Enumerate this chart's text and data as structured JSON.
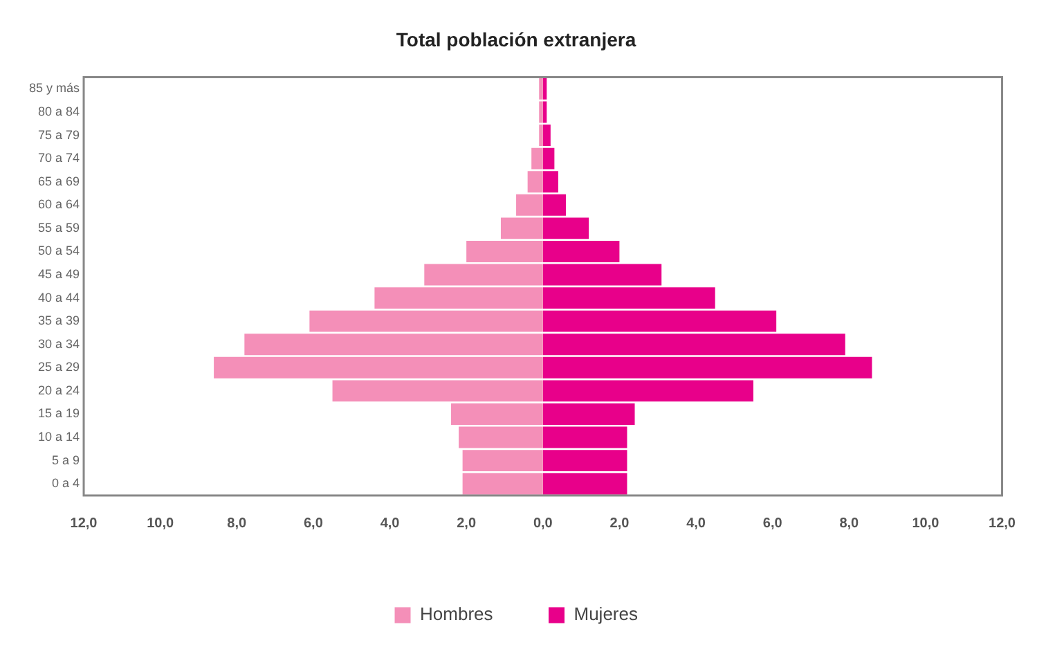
{
  "chart_data": {
    "type": "bar",
    "title": "Total población extranjera",
    "orientation": "horizontal",
    "stacked": true,
    "legend": "bottom",
    "grid": false,
    "categories": [
      "85 y más",
      "80 a 84",
      "75 a 79",
      "70 a 74",
      "65 a 69",
      "60 a 64",
      "55 a 59",
      "50 a 54",
      "45 a 49",
      "40 a 44",
      "35 a 39",
      "30 a 34",
      "25 a 29",
      "20 a 24",
      "15 a 19",
      "10 a 14",
      "5 a 9",
      "0 a 4"
    ],
    "xlim": [
      -12,
      12
    ],
    "xticks": [
      {
        "value": -12,
        "label": "12,0"
      },
      {
        "value": -10,
        "label": "10,0"
      },
      {
        "value": -8,
        "label": "8,0"
      },
      {
        "value": -6,
        "label": "6,0"
      },
      {
        "value": -4,
        "label": "4,0"
      },
      {
        "value": -2,
        "label": "2,0"
      },
      {
        "value": 0,
        "label": "0,0"
      },
      {
        "value": 2,
        "label": "2,0"
      },
      {
        "value": 4,
        "label": "4,0"
      },
      {
        "value": 6,
        "label": "6,0"
      },
      {
        "value": 8,
        "label": "8,0"
      },
      {
        "value": 10,
        "label": "10,0"
      },
      {
        "value": 12,
        "label": "12,0"
      }
    ],
    "series": [
      {
        "name": "Hombres",
        "color": "#f48fb8",
        "values": [
          -0.1,
          -0.1,
          -0.1,
          -0.3,
          -0.4,
          -0.7,
          -1.1,
          -2.0,
          -3.1,
          -4.4,
          -6.1,
          -7.8,
          -8.6,
          -5.5,
          -2.4,
          -2.2,
          -2.1,
          -2.1
        ]
      },
      {
        "name": "Mujeres",
        "color": "#e8008a",
        "values": [
          0.1,
          0.1,
          0.2,
          0.3,
          0.4,
          0.6,
          1.2,
          2.0,
          3.1,
          4.5,
          6.1,
          7.9,
          8.6,
          5.5,
          2.4,
          2.2,
          2.2,
          2.2
        ]
      }
    ]
  }
}
